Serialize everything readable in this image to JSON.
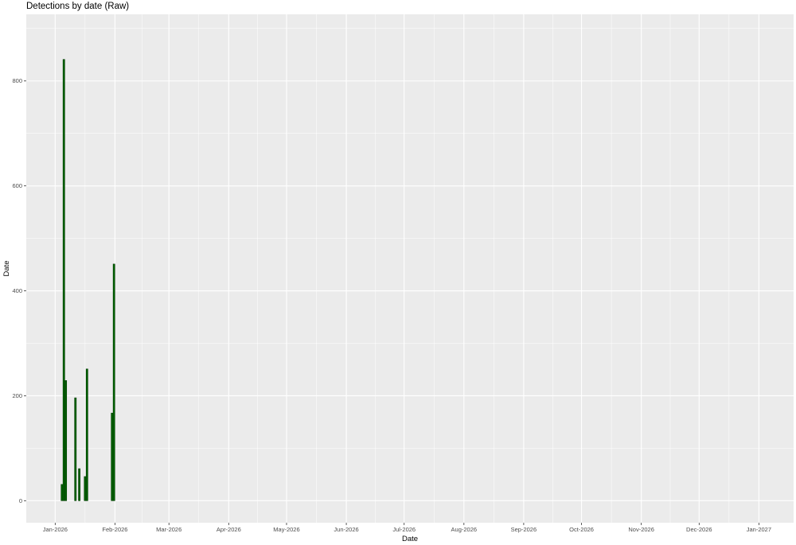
{
  "chart_data": {
    "type": "bar",
    "title": "Detections by date (Raw)",
    "xlabel": "Date",
    "ylabel": "Date",
    "x": [
      "2026-01-04",
      "2026-01-05",
      "2026-01-06",
      "2026-01-11",
      "2026-01-13",
      "2026-01-16",
      "2026-01-17",
      "2026-01-30",
      "2026-01-31"
    ],
    "values": [
      31,
      841,
      229,
      196,
      61,
      46,
      251,
      167,
      451
    ],
    "xlim": [
      "2025-12-17",
      "2027-01-19"
    ],
    "ylim": [
      -42,
      927
    ],
    "x_ticks": [
      "Jan-2026",
      "Feb-2026",
      "Mar-2026",
      "Apr-2026",
      "May-2026",
      "Jun-2026",
      "Jul-2026",
      "Aug-2026",
      "Sep-2026",
      "Oct-2026",
      "Nov-2026",
      "Dec-2026",
      "Jan-2027"
    ],
    "x_tick_dates": [
      "2026-01-01",
      "2026-02-01",
      "2026-03-01",
      "2026-04-01",
      "2026-05-01",
      "2026-06-01",
      "2026-07-01",
      "2026-08-01",
      "2026-09-01",
      "2026-10-01",
      "2026-11-01",
      "2026-12-01",
      "2027-01-01"
    ],
    "y_ticks": [
      0,
      200,
      400,
      600,
      800
    ],
    "grid": true,
    "bar_color": "#006400",
    "bar_outline": "#003a00",
    "panel_background": "#ebebeb"
  }
}
